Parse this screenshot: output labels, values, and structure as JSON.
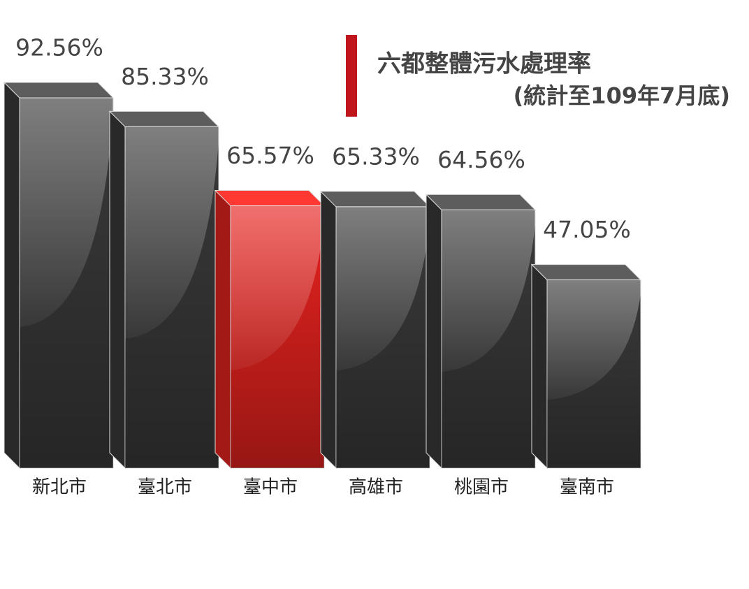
{
  "chart_data": {
    "type": "bar3d",
    "title": "六都整體污水處理率",
    "subtitle": "(統計至109年7月底)",
    "categories": [
      "新北市",
      "臺北市",
      "臺中市",
      "高雄市",
      "桃園市",
      "臺南市"
    ],
    "values": [
      92.56,
      85.33,
      65.57,
      65.33,
      64.56,
      47.05
    ],
    "value_labels": [
      "92.56%",
      "85.33%",
      "65.57%",
      "65.33%",
      "64.56%",
      "47.05%"
    ],
    "colors": [
      "#3a3a3a",
      "#3a3a3a",
      "#e8231f",
      "#3a3a3a",
      "#3a3a3a",
      "#3a3a3a"
    ],
    "accent_color": "#c0161b"
  }
}
